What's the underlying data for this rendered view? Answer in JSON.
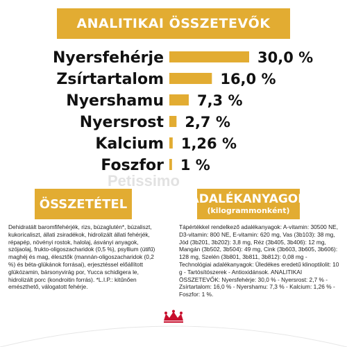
{
  "header": {
    "title": "ANALITIKAI ÖSSZETEVŐK"
  },
  "chart_data": {
    "type": "bar",
    "orientation": "horizontal",
    "categories": [
      "Nyersfehérje",
      "Zsírtartalom",
      "Nyershamu",
      "Nyersrost",
      "Kalcium",
      "Foszfor"
    ],
    "values": [
      30.0,
      16.0,
      7.3,
      2.7,
      1.26,
      1.0
    ],
    "value_labels": [
      "30,0 %",
      "16,0 %",
      "7,3 %",
      "2,7 %",
      "1,26 %",
      "1 %"
    ],
    "unit": "%",
    "bar_color": "#e2ac32",
    "grid": false,
    "legend": "none"
  },
  "composition": {
    "title": "ÖSSZETÉTEL",
    "text": "Dehidratált baromfifehérjék, rizs, búzaglutén*, búzaliszt, kukoricaliszt, állati zsiradékok, hidrolizált állati fehérjék, répapép, növényi rostok, halolaj, ásványi anyagok, szójaolaj, frukto-oligoszacharidok (0,5 %), psyllium (útifű) maghéj és mag, élesztők (mannán-oligoszacharidok (0,2 %) és béta-glükánok forrásai), erjesztéssel előállított glükózamin, bársonyvirág por, Yucca schidigera le, hidrolizált porc (kondroitin forrás). *L.I.P.: kitűnően emészthető, válogatott fehérje."
  },
  "additives": {
    "title": "ADALÉKANYAGOK",
    "subtitle": "(kilogrammonként)",
    "text": "Tápértékkel rendelkező adalékanyagok: A-vitamin: 30500 NE, D3-vitamin: 800 NE, E-vitamin: 620 mg, Vas (3b103): 38 mg, Jód (3b201, 3b202): 3,8 mg, Réz (3b405, 3b406): 12 mg, Mangán (3b502, 3b504): 49 mg, Cink (3b603, 3b605, 3b606): 128 mg, Szelén (3b801, 3b811, 3b812): 0,08 mg - Technológiai adalékanyagok: Üledékes eredetű klinoptilolit: 10 g - Tartósítószerek - Antioxidánsok. ANALITIKAI ÖSSZETEVŐK: Nyersfehérje: 30,0 % - Nyersrost: 2,7 % - Zsírtartalom: 16,0 % - Nyershamu: 7,3 % - Kalcium: 1,26 % - Foszfor: 1 %."
  },
  "watermark": {
    "text": "Petissimo"
  },
  "colors": {
    "accent": "#e2ac32",
    "brand_red": "#c8102e"
  }
}
